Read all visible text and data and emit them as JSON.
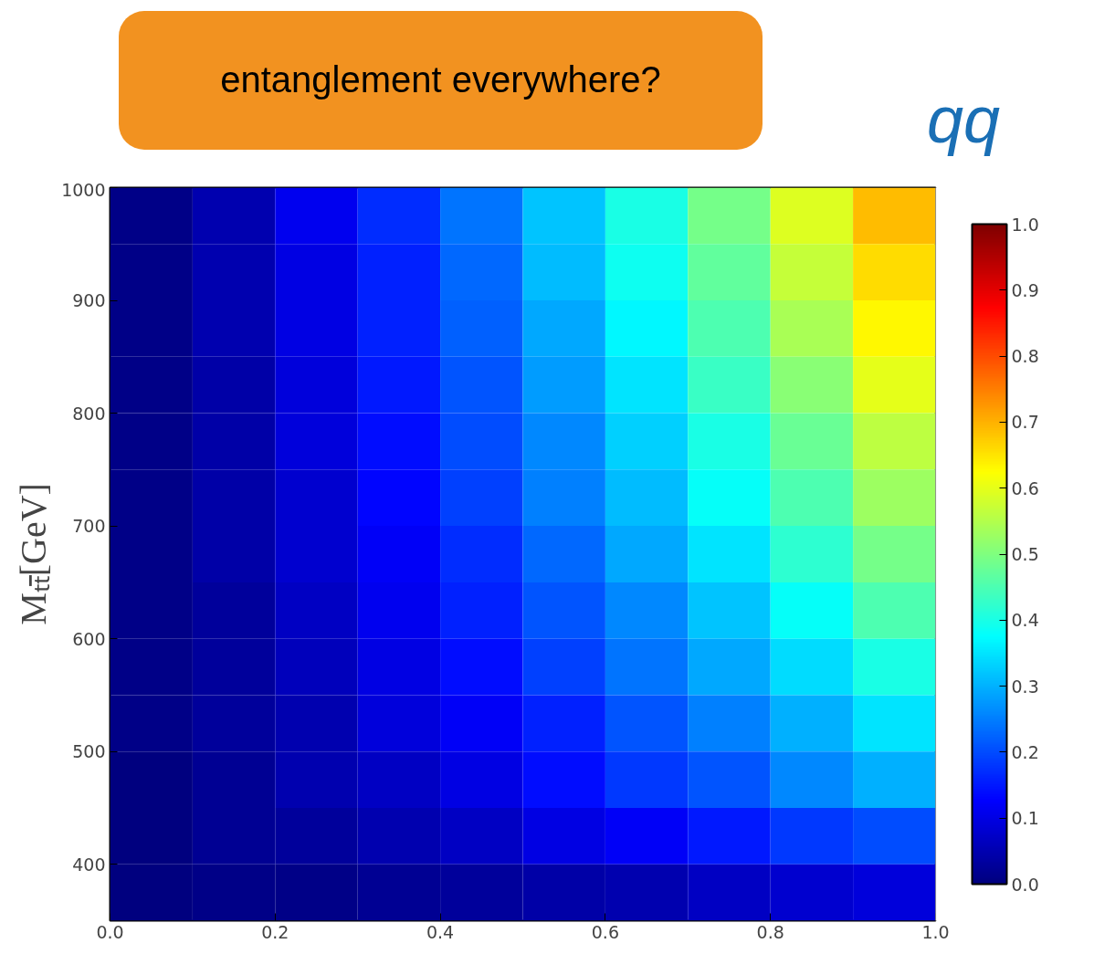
{
  "chart_data": {
    "type": "heatmap",
    "title": "entanglement everywhere?",
    "annotations": [
      "qq"
    ],
    "ylabel": "Mₜₜ̄[GeV]",
    "xlim": [
      0,
      1
    ],
    "ylim": [
      350,
      1000
    ],
    "xticks": [
      {
        "value": 0,
        "label": "0.0"
      },
      0.2,
      0.4,
      0.6,
      0.8,
      {
        "value": 1,
        "label": "1.0"
      }
    ],
    "yticks": [
      400,
      500,
      600,
      700,
      800,
      900,
      1000
    ],
    "clim": [
      0,
      1
    ],
    "cticks": [
      {
        "value": 0,
        "label": "0.0"
      },
      0.1,
      0.2,
      0.3,
      0.4,
      0.5,
      0.6,
      0.7,
      0.8,
      0.9,
      {
        "value": 1,
        "label": "1.0"
      }
    ],
    "cells": [
      [
        0.01,
        0.05,
        0.11,
        0.17,
        0.24,
        0.32,
        0.4,
        0.49,
        0.59,
        0.69
      ],
      [
        0.01,
        0.05,
        0.1,
        0.16,
        0.23,
        0.31,
        0.39,
        0.47,
        0.57,
        0.66
      ],
      [
        0.01,
        0.05,
        0.1,
        0.16,
        0.22,
        0.29,
        0.37,
        0.45,
        0.54,
        0.63
      ],
      [
        0.01,
        0.04,
        0.09,
        0.15,
        0.21,
        0.28,
        0.35,
        0.43,
        0.51,
        0.6
      ],
      [
        0.01,
        0.04,
        0.09,
        0.14,
        0.2,
        0.26,
        0.33,
        0.4,
        0.48,
        0.56
      ],
      [
        0.01,
        0.04,
        0.08,
        0.13,
        0.19,
        0.25,
        0.31,
        0.38,
        0.45,
        0.53
      ],
      [
        0.01,
        0.04,
        0.08,
        0.12,
        0.17,
        0.23,
        0.29,
        0.35,
        0.42,
        0.49
      ],
      [
        0.01,
        0.03,
        0.07,
        0.11,
        0.16,
        0.21,
        0.26,
        0.32,
        0.38,
        0.45
      ],
      [
        0.01,
        0.03,
        0.06,
        0.1,
        0.14,
        0.19,
        0.24,
        0.29,
        0.34,
        0.4
      ],
      [
        0.01,
        0.03,
        0.05,
        0.09,
        0.12,
        0.16,
        0.21,
        0.25,
        0.3,
        0.35
      ],
      [
        0.0,
        0.02,
        0.05,
        0.07,
        0.1,
        0.14,
        0.18,
        0.21,
        0.26,
        0.3
      ],
      [
        0.0,
        0.02,
        0.03,
        0.05,
        0.07,
        0.1,
        0.12,
        0.15,
        0.18,
        0.2
      ],
      [
        0.0,
        0.01,
        0.01,
        0.02,
        0.03,
        0.04,
        0.05,
        0.07,
        0.08,
        0.09
      ]
    ]
  }
}
